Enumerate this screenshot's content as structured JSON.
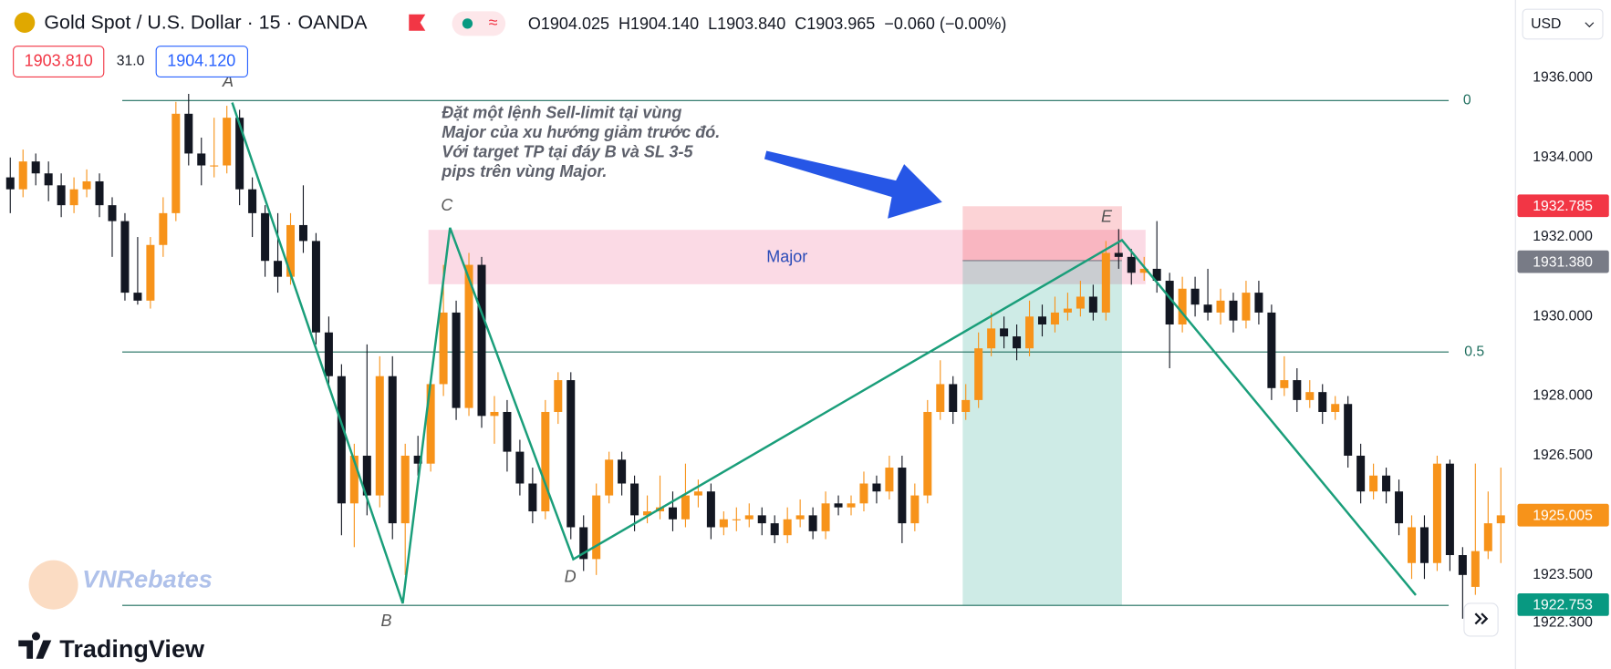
{
  "header": {
    "title": "Gold Spot / U.S. Dollar · 15 · OANDA",
    "ohlc": "O1904.025  H1904.140  L1903.840  C1903.965  −0.060 (−0.00%)",
    "bid": "1903.810",
    "spread": "31.0",
    "ask": "1904.120",
    "currency": "USD"
  },
  "chart_data": {
    "type": "candlestick",
    "up_color": "#f7931a",
    "down_color": "#131722",
    "ylim": [
      1921.135,
      1937.961
    ],
    "yticks": [
      {
        "value": 1936,
        "label": "1936.000"
      },
      {
        "value": 1934,
        "label": "1934.000"
      },
      {
        "value": 1932,
        "label": "1932.000"
      },
      {
        "value": 1930,
        "label": "1930.000"
      },
      {
        "value": 1928,
        "label": "1928.000"
      },
      {
        "value": 1926.5,
        "label": "1926.500"
      },
      {
        "value": 1923.5,
        "label": "1923.500"
      },
      {
        "value": 1922.3,
        "label": "1922.300"
      }
    ],
    "price_tags": [
      {
        "value": 1932.785,
        "label": "1932.785",
        "color": "#f23645"
      },
      {
        "value": 1931.38,
        "label": "1931.380",
        "color": "#787b86"
      },
      {
        "value": 1925.005,
        "label": "1925.005",
        "color": "#f7931a"
      },
      {
        "value": 1922.753,
        "label": "1922.753",
        "color": "#089981"
      }
    ],
    "candles": [
      [
        1933.5,
        1934.0,
        1932.6,
        1933.2
      ],
      [
        1933.2,
        1934.2,
        1933.0,
        1933.9
      ],
      [
        1933.9,
        1934.1,
        1933.3,
        1933.6
      ],
      [
        1933.6,
        1933.9,
        1932.9,
        1933.3
      ],
      [
        1933.3,
        1933.6,
        1932.5,
        1932.8
      ],
      [
        1932.8,
        1933.5,
        1932.6,
        1933.2
      ],
      [
        1933.2,
        1933.7,
        1933.0,
        1933.4
      ],
      [
        1933.4,
        1933.6,
        1932.5,
        1932.8
      ],
      [
        1932.8,
        1933.0,
        1931.5,
        1932.4
      ],
      [
        1932.4,
        1932.6,
        1930.4,
        1930.6
      ],
      [
        1930.6,
        1932.0,
        1930.3,
        1930.4
      ],
      [
        1930.4,
        1932.0,
        1930.2,
        1931.8
      ],
      [
        1931.8,
        1933.0,
        1931.5,
        1932.6
      ],
      [
        1932.6,
        1935.4,
        1932.4,
        1935.1
      ],
      [
        1935.1,
        1935.6,
        1933.8,
        1934.1
      ],
      [
        1934.1,
        1934.5,
        1933.3,
        1933.8
      ],
      [
        1933.8,
        1935.0,
        1933.5,
        1933.8
      ],
      [
        1933.8,
        1935.3,
        1933.6,
        1935.0
      ],
      [
        1935.0,
        1935.2,
        1932.8,
        1933.2
      ],
      [
        1933.2,
        1933.5,
        1932.0,
        1932.6
      ],
      [
        1932.6,
        1932.8,
        1931.0,
        1931.4
      ],
      [
        1931.4,
        1932.6,
        1930.6,
        1931.0
      ],
      [
        1931.0,
        1932.6,
        1930.8,
        1932.3
      ],
      [
        1932.3,
        1933.3,
        1931.6,
        1931.9
      ],
      [
        1931.9,
        1932.1,
        1929.3,
        1929.6
      ],
      [
        1929.6,
        1930.0,
        1928.2,
        1928.5
      ],
      [
        1928.5,
        1928.8,
        1924.5,
        1925.3
      ],
      [
        1925.3,
        1926.8,
        1924.2,
        1926.5
      ],
      [
        1926.5,
        1929.3,
        1925.0,
        1925.5
      ],
      [
        1925.5,
        1929.0,
        1925.2,
        1928.5
      ],
      [
        1928.5,
        1929.0,
        1924.4,
        1924.8
      ],
      [
        1924.8,
        1926.8,
        1923.5,
        1926.5
      ],
      [
        1926.5,
        1927.0,
        1926.0,
        1926.3
      ],
      [
        1926.3,
        1928.5,
        1926.1,
        1928.3
      ],
      [
        1928.3,
        1931.3,
        1928.0,
        1930.1
      ],
      [
        1930.1,
        1930.4,
        1927.4,
        1927.7
      ],
      [
        1927.7,
        1931.6,
        1927.5,
        1931.3
      ],
      [
        1931.3,
        1931.5,
        1927.2,
        1927.5
      ],
      [
        1927.5,
        1928.0,
        1926.8,
        1927.6
      ],
      [
        1927.6,
        1927.9,
        1926.1,
        1926.6
      ],
      [
        1926.6,
        1926.9,
        1925.5,
        1925.8
      ],
      [
        1925.8,
        1926.2,
        1924.8,
        1925.1
      ],
      [
        1925.1,
        1927.9,
        1924.9,
        1927.6
      ],
      [
        1927.6,
        1928.6,
        1927.3,
        1928.4
      ],
      [
        1928.4,
        1928.6,
        1924.4,
        1924.7
      ],
      [
        1924.7,
        1925.0,
        1923.6,
        1923.9
      ],
      [
        1923.9,
        1925.8,
        1923.5,
        1925.5
      ],
      [
        1925.5,
        1926.6,
        1925.3,
        1926.4
      ],
      [
        1926.4,
        1926.6,
        1925.5,
        1925.8
      ],
      [
        1925.8,
        1926.0,
        1924.6,
        1925.0
      ],
      [
        1925.0,
        1925.5,
        1924.8,
        1925.1
      ],
      [
        1925.1,
        1926.0,
        1924.9,
        1925.2
      ],
      [
        1925.2,
        1925.6,
        1924.6,
        1924.9
      ],
      [
        1924.9,
        1926.3,
        1924.7,
        1925.5
      ],
      [
        1925.5,
        1925.9,
        1925.2,
        1925.6
      ],
      [
        1925.6,
        1925.8,
        1924.4,
        1924.7
      ],
      [
        1924.7,
        1925.1,
        1924.5,
        1924.9
      ],
      [
        1924.9,
        1925.2,
        1924.6,
        1924.9
      ],
      [
        1924.9,
        1925.3,
        1924.7,
        1925.0
      ],
      [
        1925.0,
        1925.2,
        1924.5,
        1924.8
      ],
      [
        1924.8,
        1925.0,
        1924.3,
        1924.5
      ],
      [
        1924.5,
        1925.2,
        1924.3,
        1924.9
      ],
      [
        1924.9,
        1925.4,
        1924.7,
        1925.0
      ],
      [
        1925.0,
        1925.2,
        1924.4,
        1924.6
      ],
      [
        1924.6,
        1925.6,
        1924.4,
        1925.3
      ],
      [
        1925.3,
        1925.5,
        1925.0,
        1925.2
      ],
      [
        1925.2,
        1925.5,
        1925.0,
        1925.3
      ],
      [
        1925.3,
        1926.1,
        1925.1,
        1925.8
      ],
      [
        1925.8,
        1926.0,
        1925.3,
        1925.6
      ],
      [
        1925.6,
        1926.5,
        1925.4,
        1926.2
      ],
      [
        1926.2,
        1926.5,
        1924.3,
        1924.8
      ],
      [
        1924.8,
        1925.8,
        1924.6,
        1925.5
      ],
      [
        1925.5,
        1927.9,
        1925.3,
        1927.6
      ],
      [
        1927.6,
        1928.9,
        1927.4,
        1928.3
      ],
      [
        1928.3,
        1928.5,
        1927.3,
        1927.6
      ],
      [
        1927.6,
        1928.3,
        1927.4,
        1927.9
      ],
      [
        1927.9,
        1929.6,
        1927.7,
        1929.2
      ],
      [
        1929.2,
        1930.1,
        1929.0,
        1929.7
      ],
      [
        1929.7,
        1930.0,
        1929.2,
        1929.5
      ],
      [
        1929.5,
        1929.8,
        1928.9,
        1929.2
      ],
      [
        1929.2,
        1930.4,
        1929.0,
        1930.0
      ],
      [
        1930.0,
        1930.3,
        1929.5,
        1929.8
      ],
      [
        1929.8,
        1930.5,
        1929.6,
        1930.1
      ],
      [
        1930.1,
        1930.6,
        1929.9,
        1930.2
      ],
      [
        1930.2,
        1930.9,
        1930.0,
        1930.5
      ],
      [
        1930.5,
        1930.8,
        1929.9,
        1930.1
      ],
      [
        1930.1,
        1931.9,
        1929.9,
        1931.6
      ],
      [
        1931.6,
        1932.2,
        1931.2,
        1931.5
      ],
      [
        1931.5,
        1931.7,
        1930.8,
        1931.1
      ],
      [
        1931.1,
        1931.5,
        1930.9,
        1931.2
      ],
      [
        1931.2,
        1932.4,
        1930.6,
        1930.9
      ],
      [
        1930.9,
        1931.1,
        1928.7,
        1929.8
      ],
      [
        1929.8,
        1931.0,
        1929.6,
        1930.7
      ],
      [
        1930.7,
        1931.0,
        1930.0,
        1930.3
      ],
      [
        1930.3,
        1931.2,
        1929.9,
        1930.1
      ],
      [
        1930.1,
        1930.7,
        1929.8,
        1930.4
      ],
      [
        1930.4,
        1930.6,
        1929.6,
        1929.9
      ],
      [
        1929.9,
        1930.9,
        1929.7,
        1930.6
      ],
      [
        1930.6,
        1930.9,
        1929.8,
        1930.1
      ],
      [
        1930.1,
        1930.3,
        1927.9,
        1928.2
      ],
      [
        1928.2,
        1929.0,
        1928.0,
        1928.4
      ],
      [
        1928.4,
        1928.7,
        1927.6,
        1927.9
      ],
      [
        1927.9,
        1928.4,
        1927.7,
        1928.1
      ],
      [
        1928.1,
        1928.3,
        1927.3,
        1927.6
      ],
      [
        1927.6,
        1928.0,
        1927.4,
        1927.8
      ],
      [
        1927.8,
        1928.0,
        1926.2,
        1926.5
      ],
      [
        1926.5,
        1926.8,
        1925.3,
        1925.6
      ],
      [
        1925.6,
        1926.3,
        1925.4,
        1926.0
      ],
      [
        1926.0,
        1926.2,
        1925.3,
        1925.6
      ],
      [
        1925.6,
        1925.9,
        1924.5,
        1924.8
      ],
      [
        1923.8,
        1925.0,
        1923.4,
        1924.7
      ],
      [
        1924.7,
        1925.0,
        1923.4,
        1923.8
      ],
      [
        1923.8,
        1926.5,
        1923.6,
        1926.3
      ],
      [
        1926.3,
        1926.4,
        1923.6,
        1924.0
      ],
      [
        1924.0,
        1924.2,
        1922.4,
        1923.5
      ],
      [
        1923.2,
        1926.3,
        1923.0,
        1924.1
      ],
      [
        1924.1,
        1925.6,
        1923.9,
        1924.8
      ],
      [
        1924.8,
        1926.2,
        1923.8,
        1925.0
      ]
    ]
  },
  "drawings": {
    "points": [
      "A",
      "B",
      "C",
      "D",
      "E"
    ],
    "zone": "Major",
    "fib_levels": [
      "0",
      "0.5"
    ],
    "note": [
      "Đặt một lệnh Sell-limit tại vùng",
      "Major của xu hướng giảm trước đó.",
      "Với target TP tại đáy B và SL 3-5",
      "pips trên vùng Major."
    ]
  },
  "watermark": "VNRebates",
  "brand": "TradingView"
}
